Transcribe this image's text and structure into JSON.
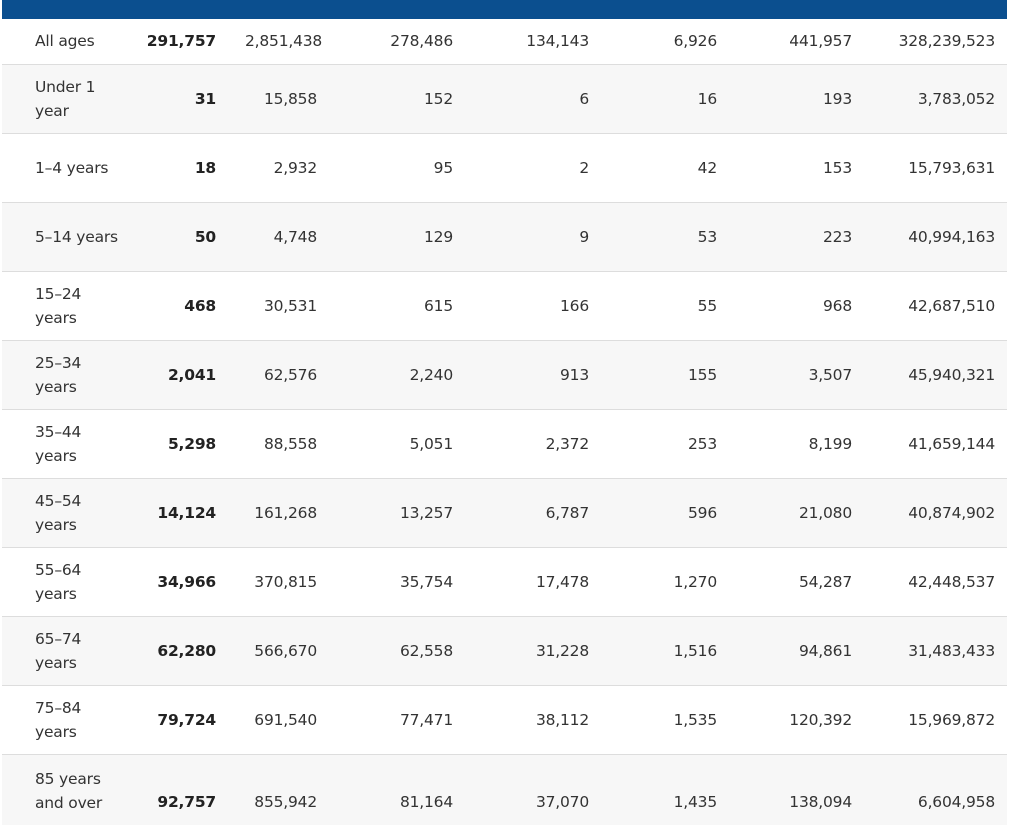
{
  "table": {
    "rows": [
      {
        "label": "All ages",
        "values": [
          "291,757",
          "2,851,438",
          "278,486",
          "134,143",
          "6,926",
          "441,957",
          "328,239,523"
        ]
      },
      {
        "label": "Under 1 year",
        "values": [
          "31",
          "15,858",
          "152",
          "6",
          "16",
          "193",
          "3,783,052"
        ]
      },
      {
        "label": "1–4 years",
        "values": [
          "18",
          "2,932",
          "95",
          "2",
          "42",
          "153",
          "15,793,631"
        ]
      },
      {
        "label": "5–14 years",
        "values": [
          "50",
          "4,748",
          "129",
          "9",
          "53",
          "223",
          "40,994,163"
        ]
      },
      {
        "label": "15–24 years",
        "values": [
          "468",
          "30,531",
          "615",
          "166",
          "55",
          "968",
          "42,687,510"
        ]
      },
      {
        "label": "25–34 years",
        "values": [
          "2,041",
          "62,576",
          "2,240",
          "913",
          "155",
          "3,507",
          "45,940,321"
        ]
      },
      {
        "label": "35–44 years",
        "values": [
          "5,298",
          "88,558",
          "5,051",
          "2,372",
          "253",
          "8,199",
          "41,659,144"
        ]
      },
      {
        "label": "45–54 years",
        "values": [
          "14,124",
          "161,268",
          "13,257",
          "6,787",
          "596",
          "21,080",
          "40,874,902"
        ]
      },
      {
        "label": "55–64 years",
        "values": [
          "34,966",
          "370,815",
          "35,754",
          "17,478",
          "1,270",
          "54,287",
          "42,448,537"
        ]
      },
      {
        "label": "65–74 years",
        "values": [
          "62,280",
          "566,670",
          "62,558",
          "31,228",
          "1,516",
          "94,861",
          "31,483,433"
        ]
      },
      {
        "label": "75–84 years",
        "values": [
          "79,724",
          "691,540",
          "77,471",
          "38,112",
          "1,535",
          "120,392",
          "15,969,872"
        ]
      },
      {
        "label": "85 years and over",
        "values": [
          "92,757",
          "855,942",
          "81,164",
          "37,070",
          "1,435",
          "138,094",
          "6,604,958"
        ]
      }
    ]
  },
  "colors": {
    "header_bar": "#0b4f8f",
    "row_stripe": "#f7f7f7",
    "divider": "#dddddd"
  }
}
